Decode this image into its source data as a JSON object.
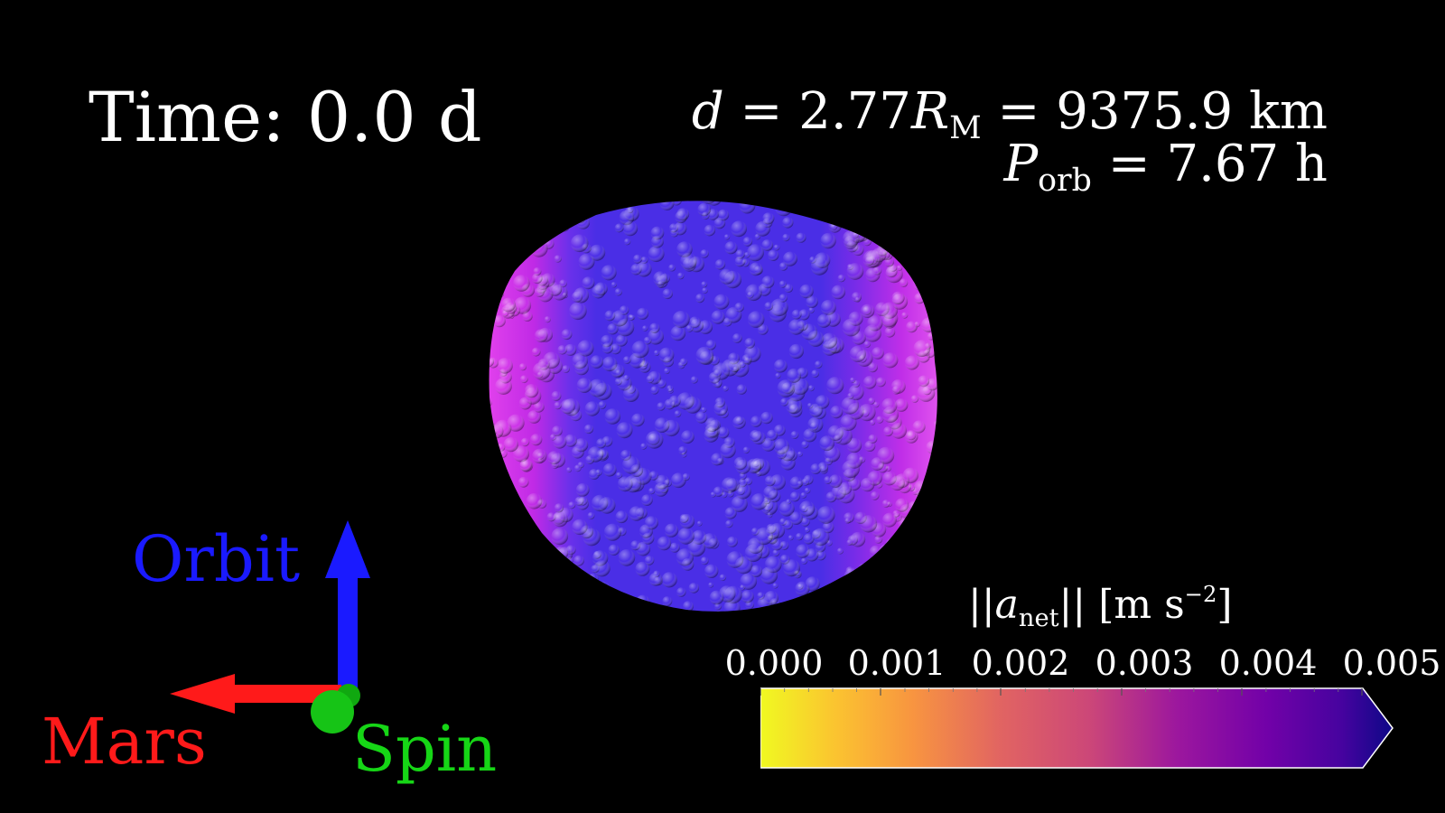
{
  "time_label": {
    "prefix": "Time:",
    "value": "0.0 d"
  },
  "distance": {
    "var": "d",
    "equals1": "=",
    "ratio": "2.77",
    "r_symbol": "R",
    "r_sub": "M",
    "equals2": "=",
    "value": "9375.9 km"
  },
  "period": {
    "var": "P",
    "var_sub": "orb",
    "equals": "=",
    "value": "7.67 h"
  },
  "axes": {
    "orbit_label": "Orbit",
    "mars_label": "Mars",
    "spin_label": "Spin",
    "orbit_color": "#1010ff",
    "mars_color": "#ff1010",
    "spin_color": "#10dd10"
  },
  "colorbar": {
    "title_norm_open": "||",
    "title_var": "a",
    "title_sub": "net",
    "title_norm_close": "||",
    "title_unit_open": "[m s",
    "title_unit_exp": "−2",
    "title_unit_close": "]",
    "ticks": [
      "0.000",
      "0.001",
      "0.002",
      "0.003",
      "0.004",
      "0.005"
    ],
    "colormap": "plasma",
    "range": [
      0,
      0.005
    ],
    "extend": "max"
  },
  "asteroid": {
    "core_color": "#4a2be8",
    "rim_color": "#c020e8"
  }
}
